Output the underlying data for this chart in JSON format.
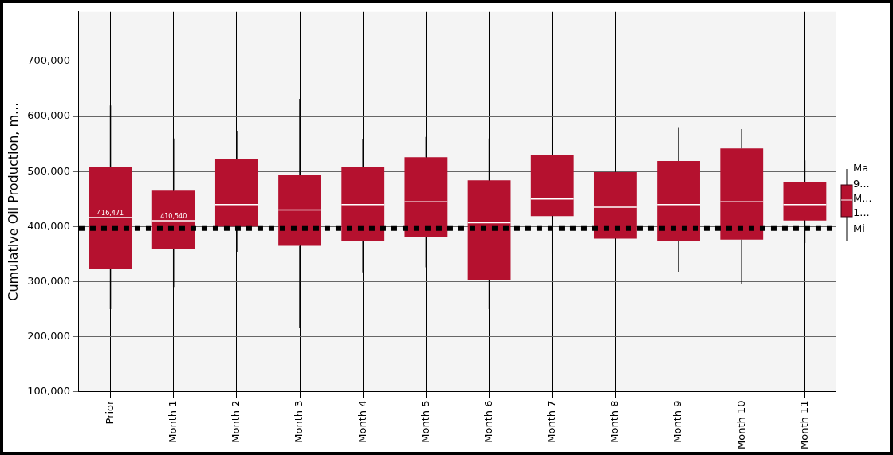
{
  "chart_data": {
    "type": "box",
    "ylabel": "Cumulative Oil Production, m...",
    "categories": [
      "Prior",
      "Month 1",
      "Month 2",
      "Month 3",
      "Month 4",
      "Month 5",
      "Month 6",
      "Month 7",
      "Month 8",
      "Month 9",
      "Month 10",
      "Month 11"
    ],
    "color": "#b5112f",
    "boxes": [
      {
        "low": 250000,
        "q1": 323000,
        "median": 416471,
        "q3": 508000,
        "high": 620000
      },
      {
        "low": 290000,
        "q1": 359000,
        "median": 410540,
        "q3": 465000,
        "high": 560000
      },
      {
        "low": 354000,
        "q1": 400000,
        "median": 440000,
        "q3": 522000,
        "high": 573000
      },
      {
        "low": 215000,
        "q1": 365000,
        "median": 430000,
        "q3": 494000,
        "high": 632000
      },
      {
        "low": 317000,
        "q1": 373000,
        "median": 440000,
        "q3": 508000,
        "high": 558000
      },
      {
        "low": 326000,
        "q1": 380000,
        "median": 445000,
        "q3": 526000,
        "high": 563000
      },
      {
        "low": 250000,
        "q1": 303000,
        "median": 407000,
        "q3": 484000,
        "high": 560000
      },
      {
        "low": 350000,
        "q1": 419000,
        "median": 450000,
        "q3": 530000,
        "high": 582000
      },
      {
        "low": 321000,
        "q1": 378000,
        "median": 435000,
        "q3": 499000,
        "high": 530000
      },
      {
        "low": 318000,
        "q1": 374000,
        "median": 440000,
        "q3": 519000,
        "high": 579000
      },
      {
        "low": 295000,
        "q1": 376000,
        "median": 445000,
        "q3": 542000,
        "high": 577000
      },
      {
        "low": 370000,
        "q1": 411000,
        "median": 440000,
        "q3": 481000,
        "high": 520000
      }
    ],
    "ylim": [
      100000,
      790000
    ],
    "yticks": [
      {
        "value": 100000,
        "label": "100,000"
      },
      {
        "value": 200000,
        "label": "200,000"
      },
      {
        "value": 300000,
        "label": "300,000"
      },
      {
        "value": 400000,
        "label": "400,000"
      },
      {
        "value": 500000,
        "label": "500,000"
      },
      {
        "value": 600000,
        "label": "600,000"
      },
      {
        "value": 700000,
        "label": "700,000"
      }
    ],
    "ref_lines": [
      {
        "axis": "y",
        "value": 397000,
        "line_style": "dotted",
        "color": "#000000"
      }
    ],
    "annotations": [
      "Ma",
      "9...",
      "M...",
      "1...",
      "Mi",
      {
        "text": "416,471",
        "x": "Prior",
        "y": 416471
      },
      {
        "text": "410,540",
        "x": "Month 1",
        "y": 410540
      }
    ],
    "grid": true
  }
}
